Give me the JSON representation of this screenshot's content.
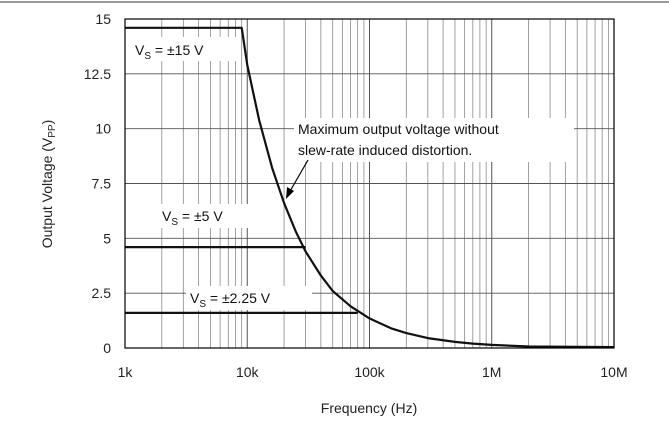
{
  "chart_data": {
    "type": "line",
    "title": "",
    "xlabel": "Frequency (Hz)",
    "ylabel": "Output Voltage (V",
    "ylabel_sub": "PP",
    "xscale": "log",
    "xlim": [
      1000,
      10000000
    ],
    "ylim": [
      0,
      15
    ],
    "grid": true,
    "x_tick_labels": [
      "1k",
      "10k",
      "100k",
      "1M",
      "10M"
    ],
    "y_tick_labels": [
      "0",
      "2.5",
      "5",
      "7.5",
      "10",
      "12.5",
      "15"
    ],
    "y_tick_values": [
      0,
      2.5,
      5,
      7.5,
      10,
      12.5,
      15
    ],
    "series": [
      {
        "x": [
          1000,
          9000,
          10000,
          12500,
          16000,
          20000,
          25000,
          30000,
          40000,
          50000,
          70000,
          100000,
          150000,
          200000,
          300000,
          500000,
          700000,
          1000000,
          2000000,
          5000000,
          10000000
        ],
        "y": [
          14.6,
          14.6,
          12.9,
          10.4,
          8.2,
          6.6,
          5.3,
          4.4,
          3.3,
          2.6,
          1.9,
          1.35,
          0.9,
          0.68,
          0.45,
          0.28,
          0.2,
          0.14,
          0.07,
          0.05,
          0.04
        ]
      },
      {
        "x": [
          1000,
          30000
        ],
        "y": [
          4.6,
          4.6
        ]
      },
      {
        "x": [
          1000,
          80000
        ],
        "y": [
          1.6,
          1.6
        ]
      }
    ],
    "annotations": [
      {
        "pre": "V",
        "sub": "S",
        "post": " = ±15 V"
      },
      {
        "pre": "V",
        "sub": "S",
        "post": " = ±5 V"
      },
      {
        "pre": "V",
        "sub": "S",
        "post": " = ±2.25 V"
      },
      {
        "lines": [
          "Maximum output voltage without",
          "slew-rate induced distortion."
        ]
      }
    ]
  }
}
